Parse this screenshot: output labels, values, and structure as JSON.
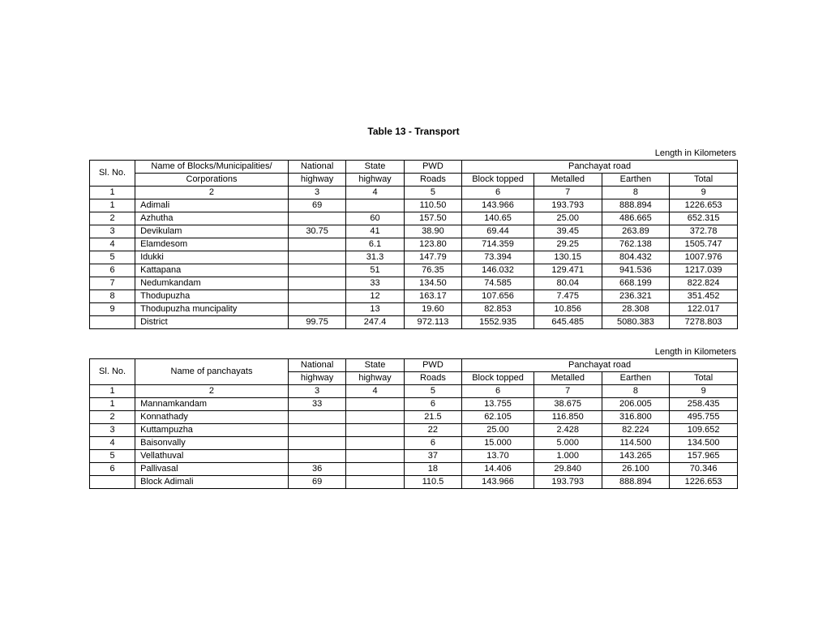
{
  "title": "Table 13 - Transport",
  "unit": "Length in Kilometers",
  "table1": {
    "header": {
      "slno": "Sl. No.",
      "name_l1": "Name of Blocks/Municipalities/",
      "name_l2": "Corporations",
      "nh_l1": "National",
      "nh_l2": "highway",
      "sh_l1": "State",
      "sh_l2": "highway",
      "pwd_l1": "PWD",
      "pwd_l2": "Roads",
      "pan": "Panchayat road",
      "bt": "Block topped",
      "met": "Metalled",
      "ear": "Earthen",
      "tot": "Total"
    },
    "numrow": [
      "1",
      "2",
      "3",
      "4",
      "5",
      "6",
      "7",
      "8",
      "9"
    ],
    "rows": [
      {
        "sl": "1",
        "name": "Adimali",
        "nh": "69",
        "sh": "",
        "pwd": "110.50",
        "bt": "143.966",
        "met": "193.793",
        "ear": "888.894",
        "tot": "1226.653"
      },
      {
        "sl": "2",
        "name": "Azhutha",
        "nh": "",
        "sh": "60",
        "pwd": "157.50",
        "bt": "140.65",
        "met": "25.00",
        "ear": "486.665",
        "tot": "652.315"
      },
      {
        "sl": "3",
        "name": "Devikulam",
        "nh": "30.75",
        "sh": "41",
        "pwd": "38.90",
        "bt": "69.44",
        "met": "39.45",
        "ear": "263.89",
        "tot": "372.78"
      },
      {
        "sl": "4",
        "name": "Elamdesom",
        "nh": "",
        "sh": "6.1",
        "pwd": "123.80",
        "bt": "714.359",
        "met": "29.25",
        "ear": "762.138",
        "tot": "1505.747"
      },
      {
        "sl": "5",
        "name": "Idukki",
        "nh": "",
        "sh": "31.3",
        "pwd": "147.79",
        "bt": "73.394",
        "met": "130.15",
        "ear": "804.432",
        "tot": "1007.976"
      },
      {
        "sl": "6",
        "name": "Kattapana",
        "nh": "",
        "sh": "51",
        "pwd": "76.35",
        "bt": "146.032",
        "met": "129.471",
        "ear": "941.536",
        "tot": "1217.039"
      },
      {
        "sl": "7",
        "name": "Nedumkandam",
        "nh": "",
        "sh": "33",
        "pwd": "134.50",
        "bt": "74.585",
        "met": "80.04",
        "ear": "668.199",
        "tot": "822.824"
      },
      {
        "sl": "8",
        "name": "Thodupuzha",
        "nh": "",
        "sh": "12",
        "pwd": "163.17",
        "bt": "107.656",
        "met": "7.475",
        "ear": "236.321",
        "tot": "351.452"
      },
      {
        "sl": "9",
        "name": "Thodupuzha muncipality",
        "nh": "",
        "sh": "13",
        "pwd": "19.60",
        "bt": "82.853",
        "met": "10.856",
        "ear": "28.308",
        "tot": "122.017"
      },
      {
        "sl": "",
        "name": "District",
        "nh": "99.75",
        "sh": "247.4",
        "pwd": "972.113",
        "bt": "1552.935",
        "met": "645.485",
        "ear": "5080.383",
        "tot": "7278.803"
      }
    ]
  },
  "table2": {
    "header": {
      "slno": "Sl. No.",
      "name": "Name of  panchayats",
      "nh_l1": "National",
      "nh_l2": "highway",
      "sh_l1": "State",
      "sh_l2": "highway",
      "pwd_l1": "PWD",
      "pwd_l2": "Roads",
      "pan": "Panchayat road",
      "bt": "Block topped",
      "met": "Metalled",
      "ear": "Earthen",
      "tot": "Total"
    },
    "numrow": [
      "1",
      "2",
      "3",
      "4",
      "5",
      "6",
      "7",
      "8",
      "9"
    ],
    "rows": [
      {
        "sl": "1",
        "name": "Mannamkandam",
        "nh": "33",
        "sh": "",
        "pwd": "6",
        "bt": "13.755",
        "met": "38.675",
        "ear": "206.005",
        "tot": "258.435"
      },
      {
        "sl": "2",
        "name": "Konnathady",
        "nh": "",
        "sh": "",
        "pwd": "21.5",
        "bt": "62.105",
        "met": "116.850",
        "ear": "316.800",
        "tot": "495.755"
      },
      {
        "sl": "3",
        "name": "Kuttampuzha",
        "nh": "",
        "sh": "",
        "pwd": "22",
        "bt": "25.00",
        "met": "2.428",
        "ear": "82.224",
        "tot": "109.652"
      },
      {
        "sl": "4",
        "name": "Baisonvally",
        "nh": "",
        "sh": "",
        "pwd": "6",
        "bt": "15.000",
        "met": "5.000",
        "ear": "114.500",
        "tot": "134.500"
      },
      {
        "sl": "5",
        "name": "Vellathuval",
        "nh": "",
        "sh": "",
        "pwd": "37",
        "bt": "13.70",
        "met": "1.000",
        "ear": "143.265",
        "tot": "157.965"
      },
      {
        "sl": "6",
        "name": "Pallivasal",
        "nh": "36",
        "sh": "",
        "pwd": "18",
        "bt": "14.406",
        "met": "29.840",
        "ear": "26.100",
        "tot": "70.346"
      },
      {
        "sl": "",
        "name": "Block   Adimali",
        "nh": "69",
        "sh": "",
        "pwd": "110.5",
        "bt": "143.966",
        "met": "193.793",
        "ear": "888.894",
        "tot": "1226.653"
      }
    ]
  }
}
